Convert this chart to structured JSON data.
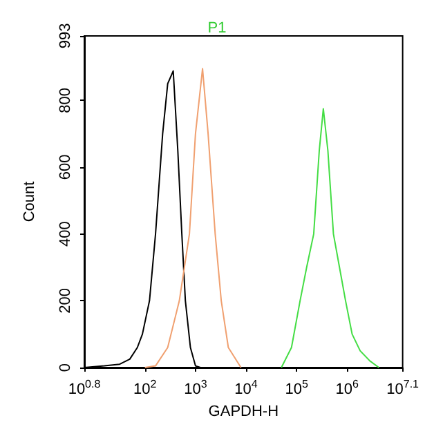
{
  "chart_data": {
    "type": "line",
    "title": "P1",
    "xlabel": "GAPDH-H",
    "ylabel": "Count",
    "log": "x",
    "grid": false,
    "marker": "none",
    "line_style": "solid",
    "xlim": [
      6.31,
      12589254
    ],
    "xticks": [
      {
        "value": 6.31,
        "label": "10$^{0.8}$"
      },
      {
        "value": 100,
        "label": "10$^{2}$"
      },
      {
        "value": 1000,
        "label": "10$^{3}$"
      },
      {
        "value": 10000,
        "label": "10$^{4}$"
      },
      {
        "value": 100000,
        "label": "10$^{5}$"
      },
      {
        "value": 1000000,
        "label": "10$^{6}$"
      },
      {
        "value": 12589254,
        "label": "10$^{7.1}$"
      }
    ],
    "ylim": [
      0,
      993
    ],
    "yticks": [
      0,
      200,
      400,
      600,
      800,
      993
    ],
    "series": [
      {
        "color": "#000000",
        "x": [
          6.31,
          15.8,
          31.6,
          50.1,
          70.8,
          89.1,
          123,
          162,
          224,
          282,
          363,
          447,
          537,
          631,
          794,
          1000,
          1259
        ],
        "values": [
          0,
          5,
          10,
          25,
          60,
          100,
          200,
          400,
          700,
          850,
          888,
          650,
          400,
          200,
          60,
          5,
          0
        ]
      },
      {
        "color": "#f0a070",
        "x": [
          100,
          162,
          282,
          479,
          759,
          1000,
          1380,
          1778,
          2455,
          3236,
          4467,
          7943
        ],
        "values": [
          0,
          5,
          60,
          200,
          400,
          700,
          895,
          700,
          400,
          200,
          60,
          0
        ]
      },
      {
        "color": "#44dd44",
        "x": [
          50119,
          79433,
          117490,
          158489,
          218776,
          281838,
          338844,
          416869,
          537032,
          707946,
          933254,
          1258925,
          1819701,
          2818383,
          4265795
        ],
        "values": [
          0,
          60,
          200,
          300,
          400,
          650,
          775,
          650,
          400,
          300,
          200,
          100,
          50,
          20,
          0
        ]
      }
    ]
  }
}
